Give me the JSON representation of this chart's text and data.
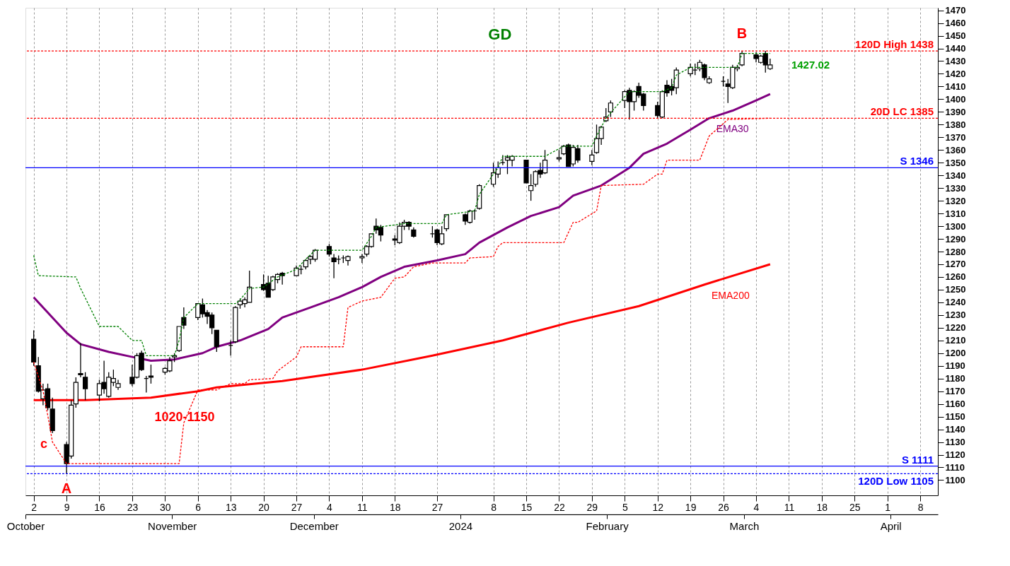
{
  "chart_data": {
    "type": "candlestick",
    "x": [
      "2023-10-02",
      "2023-10-03",
      "2023-10-04",
      "2023-10-05",
      "2023-10-06",
      "2023-10-09",
      "2023-10-10",
      "2023-10-11",
      "2023-10-12",
      "2023-10-13",
      "2023-10-16",
      "2023-10-17",
      "2023-10-18",
      "2023-10-19",
      "2023-10-20",
      "2023-10-23",
      "2023-10-24",
      "2023-10-25",
      "2023-10-26",
      "2023-10-27",
      "2023-10-30",
      "2023-10-31",
      "2023-11-01",
      "2023-11-02",
      "2023-11-03",
      "2023-11-06",
      "2023-11-07",
      "2023-11-08",
      "2023-11-09",
      "2023-11-10",
      "2023-11-13",
      "2023-11-14",
      "2023-11-15",
      "2023-11-16",
      "2023-11-17",
      "2023-11-20",
      "2023-11-21",
      "2023-11-22",
      "2023-11-23",
      "2023-11-24",
      "2023-11-27",
      "2023-11-28",
      "2023-11-29",
      "2023-11-30",
      "2023-12-01",
      "2023-12-04",
      "2023-12-05",
      "2023-12-06",
      "2023-12-07",
      "2023-12-08",
      "2023-12-11",
      "2023-12-12",
      "2023-12-13",
      "2023-12-14",
      "2023-12-15",
      "2023-12-18",
      "2023-12-19",
      "2023-12-20",
      "2023-12-21",
      "2023-12-22",
      "2023-12-26",
      "2023-12-27",
      "2023-12-28",
      "2023-12-29",
      "2024-01-02",
      "2024-01-03",
      "2024-01-04",
      "2024-01-05",
      "2024-01-08",
      "2024-01-09",
      "2024-01-10",
      "2024-01-11",
      "2024-01-12",
      "2024-01-15",
      "2024-01-16",
      "2024-01-17",
      "2024-01-18",
      "2024-01-19",
      "2024-01-22",
      "2024-01-23",
      "2024-01-24",
      "2024-01-25",
      "2024-01-26",
      "2024-01-29",
      "2024-01-30",
      "2024-01-31",
      "2024-02-01",
      "2024-02-02",
      "2024-02-05",
      "2024-02-06",
      "2024-02-07",
      "2024-02-08",
      "2024-02-09",
      "2024-02-12",
      "2024-02-13",
      "2024-02-14",
      "2024-02-15",
      "2024-02-16",
      "2024-02-19",
      "2024-02-20",
      "2024-02-21",
      "2024-02-22",
      "2024-02-23",
      "2024-02-26",
      "2024-02-27",
      "2024-02-28",
      "2024-02-29",
      "2024-03-01",
      "2024-03-04",
      "2024-03-05",
      "2024-03-06",
      "2024-03-07"
    ],
    "ohlc": [
      [
        1211,
        1218,
        1190,
        1193
      ],
      [
        1190,
        1197,
        1169,
        1170
      ],
      [
        1164,
        1176,
        1159,
        1171
      ],
      [
        1172,
        1176,
        1155,
        1157
      ],
      [
        1156,
        1165,
        1137,
        1139
      ],
      [
        1128,
        1130,
        1105,
        1113
      ],
      [
        1119,
        1163,
        1117,
        1159
      ],
      [
        1160,
        1181,
        1157,
        1177
      ],
      [
        1184,
        1208,
        1181,
        1183
      ],
      [
        1181,
        1185,
        1163,
        1172
      ],
      [
        1167,
        1179,
        1162,
        1176
      ],
      [
        1177,
        1194,
        1168,
        1172
      ],
      [
        1166,
        1185,
        1165,
        1181
      ],
      [
        1177,
        1187,
        1174,
        1180
      ],
      [
        1173,
        1179,
        1171,
        1176
      ],
      [
        1181,
        1191,
        1174,
        1176
      ],
      [
        1181,
        1200,
        1180,
        1198
      ],
      [
        1200,
        1202,
        1186,
        1187
      ],
      [
        1180,
        1182,
        1169,
        1180
      ],
      [
        1182,
        1191,
        1176,
        1181
      ],
      [
        1185,
        1189,
        1183,
        1188
      ],
      [
        1186,
        1197,
        1185,
        1194
      ],
      [
        1197,
        1200,
        1193,
        1198
      ],
      [
        1202,
        1221,
        1201,
        1221
      ],
      [
        1228,
        1236,
        1219,
        1222
      ],
      [
        1228,
        1239,
        1226,
        1239
      ],
      [
        1238,
        1243,
        1228,
        1231
      ],
      [
        1232,
        1234,
        1223,
        1229
      ],
      [
        1230,
        1232,
        1215,
        1220
      ],
      [
        1218,
        1218,
        1201,
        1205
      ],
      [
        1206,
        1210,
        1198,
        1206
      ],
      [
        1209,
        1237,
        1208,
        1236
      ],
      [
        1238,
        1243,
        1235,
        1241
      ],
      [
        1239,
        1244,
        1236,
        1242
      ],
      [
        1240,
        1265,
        1240,
        1252
      ],
      [
        1254,
        1262,
        1249,
        1250
      ],
      [
        1255,
        1261,
        1244,
        1244
      ],
      [
        1250,
        1261,
        1249,
        1260
      ],
      [
        1258,
        1263,
        1255,
        1262
      ],
      [
        1263,
        1264,
        1254,
        1261
      ],
      [
        1261,
        1269,
        1261,
        1267
      ],
      [
        1266,
        1269,
        1262,
        1266
      ],
      [
        1268,
        1274,
        1266,
        1273
      ],
      [
        1274,
        1277,
        1270,
        1276
      ],
      [
        1274,
        1282,
        1272,
        1281
      ],
      [
        1284,
        1286,
        1276,
        1278
      ],
      [
        1275,
        1278,
        1259,
        1272
      ],
      [
        1274,
        1277,
        1270,
        1274
      ],
      [
        1275,
        1277,
        1271,
        1275
      ],
      [
        1273,
        1277,
        1269,
        1276
      ],
      [
        1275,
        1278,
        1271,
        1276
      ],
      [
        1278,
        1285,
        1276,
        1284
      ],
      [
        1284,
        1294,
        1283,
        1294
      ],
      [
        1300,
        1306,
        1294,
        1297
      ],
      [
        1299,
        1301,
        1288,
        1293
      ],
      [
        1290,
        1293,
        1285,
        1289
      ],
      [
        1287,
        1303,
        1286,
        1300
      ],
      [
        1300,
        1305,
        1297,
        1303
      ],
      [
        1303,
        1304,
        1297,
        1300
      ],
      [
        1297,
        1299,
        1291,
        1292
      ],
      [
        1294,
        1300,
        1291,
        1294
      ],
      [
        1297,
        1298,
        1285,
        1287
      ],
      [
        1286,
        1300,
        1285,
        1294
      ],
      [
        1298,
        1309,
        1296,
        1309
      ],
      [
        1309,
        1310,
        1301,
        1304
      ],
      [
        1303,
        1313,
        1302,
        1312
      ],
      [
        1312,
        1313,
        1305,
        1312
      ],
      [
        1314,
        1333,
        1313,
        1332
      ],
      [
        1333,
        1350,
        1331,
        1342
      ],
      [
        1341,
        1351,
        1338,
        1346
      ],
      [
        1350,
        1356,
        1348,
        1350
      ],
      [
        1352,
        1356,
        1341,
        1354
      ],
      [
        1352,
        1356,
        1347,
        1355
      ],
      [
        1352,
        1352,
        1334,
        1334
      ],
      [
        1328,
        1341,
        1320,
        1332
      ],
      [
        1333,
        1344,
        1331,
        1343
      ],
      [
        1344,
        1350,
        1338,
        1341
      ],
      [
        1342,
        1360,
        1341,
        1352
      ],
      [
        1353,
        1360,
        1351,
        1354
      ],
      [
        1357,
        1364,
        1356,
        1363
      ],
      [
        1364,
        1365,
        1347,
        1347
      ],
      [
        1349,
        1364,
        1347,
        1362
      ],
      [
        1361,
        1364,
        1350,
        1352
      ],
      [
        1351,
        1360,
        1348,
        1356
      ],
      [
        1358,
        1380,
        1357,
        1369
      ],
      [
        1369,
        1379,
        1364,
        1378
      ],
      [
        1383,
        1393,
        1382,
        1386
      ],
      [
        1390,
        1399,
        1386,
        1397
      ],
      [
        1399,
        1407,
        1393,
        1406
      ],
      [
        1407,
        1409,
        1384,
        1398
      ],
      [
        1398,
        1407,
        1391,
        1406
      ],
      [
        1410,
        1413,
        1401,
        1403
      ],
      [
        1404,
        1405,
        1391,
        1395
      ],
      [
        1395,
        1398,
        1385,
        1387
      ],
      [
        1386,
        1407,
        1385,
        1406
      ],
      [
        1411,
        1415,
        1402,
        1405
      ],
      [
        1410,
        1416,
        1403,
        1407
      ],
      [
        1409,
        1425,
        1404,
        1423
      ],
      [
        1420,
        1428,
        1418,
        1425
      ],
      [
        1423,
        1428,
        1419,
        1423
      ],
      [
        1424,
        1431,
        1422,
        1429
      ],
      [
        1427,
        1428,
        1415,
        1417
      ],
      [
        1413,
        1418,
        1412,
        1416
      ],
      [
        1414,
        1418,
        1410,
        1414
      ],
      [
        1412,
        1416,
        1397,
        1410
      ],
      [
        1409,
        1427,
        1408,
        1425
      ],
      [
        1424,
        1427,
        1422,
        1425
      ],
      [
        1427,
        1438,
        1426,
        1436
      ],
      [
        1435,
        1437,
        1429,
        1432
      ],
      [
        1429,
        1435,
        1428,
        1434
      ],
      [
        1436,
        1438,
        1421,
        1427
      ],
      [
        1424,
        1432,
        1423,
        1427.02
      ]
    ],
    "series": [
      {
        "type": "line",
        "color": "#008000",
        "line_style": "dashed",
        "x": [
          "2023-10-02",
          "2023-10-03",
          "2023-10-11",
          "2023-10-12",
          "2023-10-16",
          "2023-10-20",
          "2023-10-23",
          "2023-10-25",
          "2023-10-26",
          "2023-11-01",
          "2023-11-02",
          "2023-11-03",
          "2023-11-06",
          "2023-11-14",
          "2023-11-15",
          "2023-11-17",
          "2023-11-20",
          "2023-11-23",
          "2023-11-27",
          "2023-11-29",
          "2023-12-01",
          "2023-12-11",
          "2023-12-13",
          "2023-12-14",
          "2023-12-20",
          "2023-12-28",
          "2023-12-29",
          "2024-01-04",
          "2024-01-05",
          "2024-01-08",
          "2024-01-09",
          "2024-01-10",
          "2024-01-19",
          "2024-01-23",
          "2024-01-29",
          "2024-01-30",
          "2024-02-01",
          "2024-02-05",
          "2024-02-06",
          "2024-02-09",
          "2024-02-13",
          "2024-02-15",
          "2024-02-16",
          "2024-02-19",
          "2024-02-29",
          "2024-03-01",
          "2024-03-07"
        ],
        "values": [
          1277,
          1261,
          1260,
          1251,
          1221,
          1221,
          1210,
          1210,
          1198,
          1198,
          1210,
          1228,
          1239,
          1239,
          1242,
          1251,
          1252,
          1260,
          1266,
          1274,
          1281,
          1281,
          1292,
          1299,
          1302,
          1302,
          1309,
          1312,
          1325,
          1341,
          1346,
          1355,
          1355,
          1363,
          1363,
          1371,
          1385,
          1402,
          1406,
          1406,
          1406,
          1409,
          1419,
          1425,
          1425,
          1436,
          1436
        ]
      },
      {
        "type": "line",
        "color": "#ff0000",
        "line_style": "dashed",
        "x": [
          "2023-10-02",
          "2023-10-04",
          "2023-10-05",
          "2023-10-06",
          "2023-10-09",
          "2023-11-02",
          "2023-11-03",
          "2023-11-06",
          "2023-11-10",
          "2023-11-13",
          "2023-11-16",
          "2023-11-17",
          "2023-11-22",
          "2023-11-23",
          "2023-11-27",
          "2023-11-28",
          "2023-12-07",
          "2023-12-08",
          "2023-12-11",
          "2023-12-15",
          "2023-12-18",
          "2023-12-20",
          "2023-12-22",
          "2023-12-26",
          "2024-01-02",
          "2024-01-03",
          "2024-01-08",
          "2024-01-09",
          "2024-01-10",
          "2024-01-23",
          "2024-01-25",
          "2024-01-26",
          "2024-01-30",
          "2024-01-31",
          "2024-02-09",
          "2024-02-12",
          "2024-02-13",
          "2024-02-14",
          "2024-02-21",
          "2024-02-23",
          "2024-02-27",
          "2024-03-07"
        ],
        "values": [
          1193,
          1170,
          1151,
          1130,
          1113,
          1113,
          1145,
          1171,
          1171,
          1176,
          1176,
          1179,
          1180,
          1186,
          1197,
          1205,
          1205,
          1236,
          1241,
          1244,
          1259,
          1260,
          1268,
          1271,
          1271,
          1275,
          1276,
          1284,
          1287,
          1287,
          1303,
          1303,
          1312,
          1332,
          1333,
          1341,
          1341,
          1352,
          1352,
          1371,
          1384,
          1385
        ]
      },
      {
        "type": "line",
        "name": "EMA30",
        "color": "#800080",
        "line_style": "solid",
        "x": [
          "2023-10-02",
          "2023-10-09",
          "2023-10-12",
          "2023-10-18",
          "2023-10-23",
          "2023-10-27",
          "2023-11-01",
          "2023-11-07",
          "2023-11-10",
          "2023-11-15",
          "2023-11-21",
          "2023-11-24",
          "2023-11-30",
          "2023-12-06",
          "2023-12-11",
          "2023-12-15",
          "2023-12-20",
          "2023-12-27",
          "2024-01-02",
          "2024-01-05",
          "2024-01-11",
          "2024-01-16",
          "2024-01-22",
          "2024-01-25",
          "2024-01-31",
          "2024-02-06",
          "2024-02-09",
          "2024-02-14",
          "2024-02-19",
          "2024-02-23",
          "2024-02-28",
          "2024-03-04",
          "2024-03-07"
        ],
        "values": [
          1244,
          1216,
          1207,
          1201,
          1197,
          1194,
          1195,
          1200,
          1205,
          1210,
          1219,
          1228,
          1236,
          1244,
          1252,
          1260,
          1268,
          1273,
          1278,
          1287,
          1299,
          1308,
          1315,
          1324,
          1332,
          1346,
          1357,
          1365,
          1376,
          1385,
          1391,
          1399,
          1404
        ]
      },
      {
        "type": "line",
        "name": "EMA200",
        "color": "#ff0000",
        "line_style": "solid",
        "x": [
          "2023-10-02",
          "2023-10-13",
          "2023-10-27",
          "2023-11-06",
          "2023-11-10",
          "2023-11-24",
          "2023-12-11",
          "2023-12-26",
          "2024-01-10",
          "2024-01-24",
          "2024-02-08",
          "2024-02-22",
          "2024-03-07"
        ],
        "values": [
          1163,
          1163,
          1165,
          1170,
          1173,
          1178,
          1187,
          1198,
          1210,
          1224,
          1237,
          1254,
          1270
        ]
      }
    ],
    "xlim": [
      "2023-10-01",
      "2024-04-11"
    ],
    "xticks": [
      {
        "value": "2023-10-02",
        "label": "2"
      },
      {
        "value": "2023-10-09",
        "label": "9"
      },
      {
        "value": "2023-10-16",
        "label": "16"
      },
      {
        "value": "2023-10-23",
        "label": "23"
      },
      {
        "value": "2023-10-30",
        "label": "30"
      },
      {
        "value": "2023-11-06",
        "label": "6"
      },
      {
        "value": "2023-11-13",
        "label": "13"
      },
      {
        "value": "2023-11-20",
        "label": "20"
      },
      {
        "value": "2023-11-27",
        "label": "27"
      },
      {
        "value": "2023-12-04",
        "label": "4"
      },
      {
        "value": "2023-12-11",
        "label": "11"
      },
      {
        "value": "2023-12-18",
        "label": "18"
      },
      {
        "value": "2023-12-27",
        "label": "27"
      },
      {
        "value": "2024-01-08",
        "label": "8"
      },
      {
        "value": "2024-01-15",
        "label": "15"
      },
      {
        "value": "2024-01-22",
        "label": "22"
      },
      {
        "value": "2024-01-29",
        "label": "29"
      },
      {
        "value": "2024-02-05",
        "label": "5"
      },
      {
        "value": "2024-02-12",
        "label": "12"
      },
      {
        "value": "2024-02-19",
        "label": "19"
      },
      {
        "value": "2024-02-26",
        "label": "26"
      },
      {
        "value": "2024-03-04",
        "label": "4"
      },
      {
        "value": "2024-03-11",
        "label": "11"
      },
      {
        "value": "2024-03-18",
        "label": "18"
      },
      {
        "value": "2024-03-25",
        "label": "25"
      },
      {
        "value": "2024-04-01",
        "label": "1"
      },
      {
        "value": "2024-04-08",
        "label": "8"
      }
    ],
    "ylim": [
      1088,
      1472
    ],
    "yticks": [
      1100,
      1110,
      1120,
      1130,
      1140,
      1150,
      1160,
      1170,
      1180,
      1190,
      1200,
      1210,
      1220,
      1230,
      1240,
      1250,
      1260,
      1270,
      1280,
      1290,
      1300,
      1310,
      1320,
      1330,
      1340,
      1350,
      1360,
      1370,
      1380,
      1390,
      1400,
      1410,
      1420,
      1430,
      1440,
      1450,
      1460,
      1470
    ],
    "grid": "x",
    "ref_lines": [
      {
        "axis": "y",
        "value": 1438,
        "label": "120D High 1438",
        "color": "#ff0000",
        "line_style": "dashed"
      },
      {
        "axis": "y",
        "value": 1385,
        "label": "20D LC 1385",
        "color": "#ff0000",
        "line_style": "dashed"
      },
      {
        "axis": "y",
        "value": 1346,
        "label": "S 1346",
        "color": "#0000ff",
        "line_style": "solid"
      },
      {
        "axis": "y",
        "value": 1111,
        "label": "S 1111",
        "color": "#0000ff",
        "line_style": "solid"
      },
      {
        "axis": "y",
        "value": 1105,
        "label": "120D Low 1105",
        "color": "#0000ff",
        "line_style": "dashed"
      }
    ],
    "annotations": [
      "GD",
      {
        "text": "B",
        "x": "2024-03-01",
        "y": 1438
      },
      {
        "text": "A",
        "x": "2023-10-09",
        "y": 1105
      },
      "c",
      "1020-1150",
      {
        "text": "1427.02",
        "x": "2024-03-07",
        "y": 1427.02
      }
    ],
    "x2lim": [
      "2023-10-01",
      "2024-04-11"
    ],
    "x2ticks": [
      {
        "value": "2023-10-01",
        "label": "October"
      },
      {
        "value": "2023-11-01",
        "label": "November"
      },
      {
        "value": "2023-12-01",
        "label": "December"
      },
      {
        "value": "2024-01-01",
        "label": "2024"
      },
      {
        "value": "2024-02-01",
        "label": "February"
      },
      {
        "value": "2024-03-01",
        "label": "March"
      },
      {
        "value": "2024-04-01",
        "label": "April"
      }
    ]
  }
}
